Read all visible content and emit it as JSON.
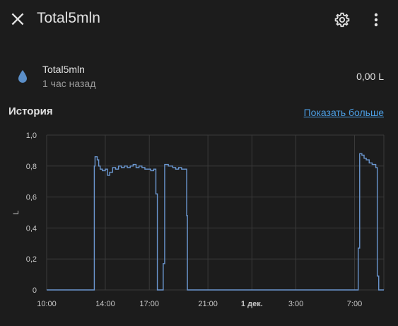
{
  "header": {
    "title": "Total5mln",
    "icons": {
      "close": "close-icon",
      "settings": "gear-icon",
      "menu": "dots-vertical-icon"
    }
  },
  "entity": {
    "name": "Total5mln",
    "time_ago": "1 час назад",
    "state": "0,00 L",
    "icon": "water-drop-icon",
    "icon_color": "#5b8fc9"
  },
  "history": {
    "title": "История",
    "show_more": "Показать больше"
  },
  "colors": {
    "accent": "#4b9ee4",
    "series": "#6b97d0",
    "grid": "#3a3a3a"
  },
  "chart_data": {
    "type": "line",
    "ylabel": "L",
    "ylim": [
      0,
      1
    ],
    "yticks": [
      "0",
      "0,2",
      "0,4",
      "0,6",
      "0,8",
      "1,0"
    ],
    "ytick_values": [
      0,
      0.2,
      0.4,
      0.6,
      0.8,
      1.0
    ],
    "xlim_hours": [
      10,
      33
    ],
    "xticks": [
      {
        "label": "10:00",
        "hour": 10,
        "bold": false
      },
      {
        "label": "14:00",
        "hour": 14,
        "bold": false
      },
      {
        "label": "17:00",
        "hour": 17,
        "bold": false
      },
      {
        "label": "21:00",
        "hour": 21,
        "bold": false
      },
      {
        "label": "1 дек.",
        "hour": 24,
        "bold": true
      },
      {
        "label": "3:00",
        "hour": 27,
        "bold": false
      },
      {
        "label": "7:00",
        "hour": 31,
        "bold": false
      }
    ],
    "grid": true,
    "series": [
      {
        "step": true,
        "points": [
          [
            10.0,
            0
          ],
          [
            13.2,
            0
          ],
          [
            13.25,
            0.8
          ],
          [
            13.3,
            0.86
          ],
          [
            13.45,
            0.84
          ],
          [
            13.55,
            0.8
          ],
          [
            13.65,
            0.78
          ],
          [
            13.8,
            0.77
          ],
          [
            14.0,
            0.78
          ],
          [
            14.15,
            0.74
          ],
          [
            14.3,
            0.76
          ],
          [
            14.5,
            0.79
          ],
          [
            14.7,
            0.78
          ],
          [
            14.9,
            0.8
          ],
          [
            15.1,
            0.79
          ],
          [
            15.3,
            0.8
          ],
          [
            15.5,
            0.79
          ],
          [
            15.7,
            0.8
          ],
          [
            15.9,
            0.81
          ],
          [
            16.1,
            0.79
          ],
          [
            16.3,
            0.8
          ],
          [
            16.5,
            0.79
          ],
          [
            16.7,
            0.78
          ],
          [
            16.9,
            0.78
          ],
          [
            17.1,
            0.77
          ],
          [
            17.3,
            0.78
          ],
          [
            17.45,
            0.62
          ],
          [
            17.55,
            0.0
          ],
          [
            17.9,
            0.0
          ],
          [
            17.95,
            0.17
          ],
          [
            18.05,
            0.81
          ],
          [
            18.3,
            0.8
          ],
          [
            18.6,
            0.79
          ],
          [
            18.8,
            0.78
          ],
          [
            19.0,
            0.79
          ],
          [
            19.2,
            0.78
          ],
          [
            19.4,
            0.78
          ],
          [
            19.55,
            0.48
          ],
          [
            19.6,
            0.0
          ],
          [
            31.2,
            0.0
          ],
          [
            31.25,
            0.27
          ],
          [
            31.35,
            0.88
          ],
          [
            31.5,
            0.87
          ],
          [
            31.65,
            0.85
          ],
          [
            31.8,
            0.84
          ],
          [
            32.0,
            0.82
          ],
          [
            32.2,
            0.81
          ],
          [
            32.45,
            0.79
          ],
          [
            32.55,
            0.09
          ],
          [
            32.65,
            0.0
          ],
          [
            33.0,
            0.0
          ]
        ]
      }
    ]
  }
}
